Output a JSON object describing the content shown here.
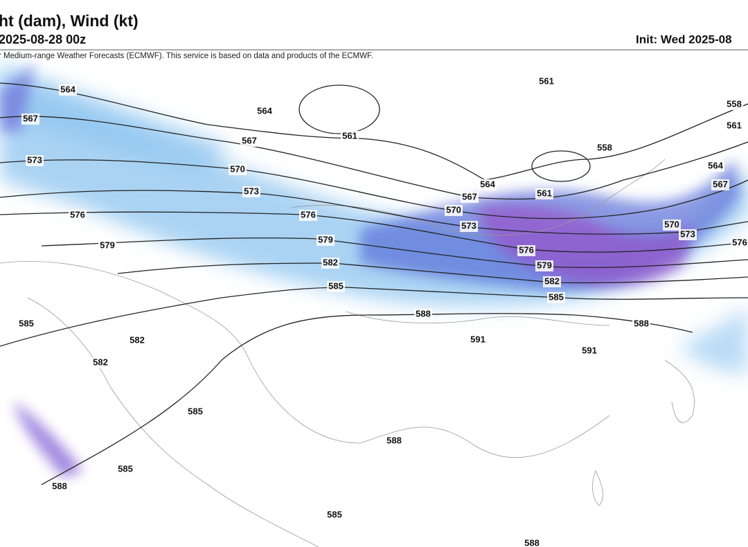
{
  "header": {
    "title": "ht (dam), Wind (kt)",
    "valid": "2025-08-28 00z",
    "init": "Init: Wed 2025-08",
    "credit": "r Medium-range Weather Forecasts (ECMWF). This service is based on data and products of the ECMWF."
  },
  "contour_labels": [
    "564",
    "567",
    "573",
    "576",
    "579",
    "564",
    "567",
    "570",
    "573",
    "576",
    "579",
    "582",
    "585",
    "588",
    "591",
    "591",
    "561",
    "561",
    "558",
    "558",
    "561",
    "564",
    "567",
    "570",
    "573",
    "576",
    "564",
    "567",
    "570",
    "573",
    "576",
    "579",
    "582",
    "585",
    "561",
    "588",
    "585",
    "582",
    "582",
    "585",
    "588",
    "585",
    "588",
    "585",
    "588"
  ]
}
